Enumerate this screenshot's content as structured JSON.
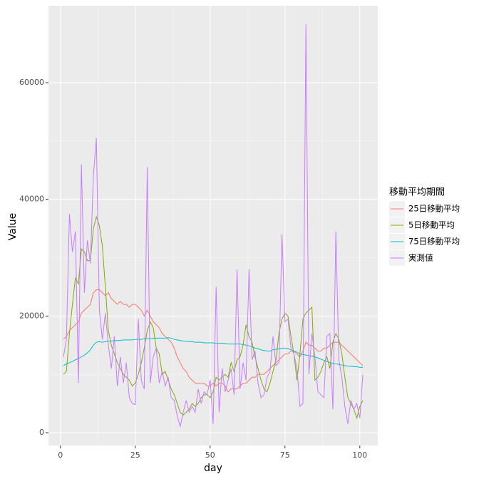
{
  "chart_data": {
    "type": "line",
    "x_label": "day",
    "y_label": "Value",
    "legend_title": "移動平均期間",
    "legend_position": "right",
    "grid": true,
    "xlim": [
      -4,
      106
    ],
    "ylim": [
      -2200,
      73200
    ],
    "xticks": [
      0,
      25,
      50,
      75,
      100
    ],
    "yticks": [
      0,
      20000,
      40000,
      60000
    ],
    "x": [
      1,
      2,
      3,
      4,
      5,
      6,
      7,
      8,
      9,
      10,
      11,
      12,
      13,
      14,
      15,
      16,
      17,
      18,
      19,
      20,
      21,
      22,
      23,
      24,
      25,
      26,
      27,
      28,
      29,
      30,
      31,
      32,
      33,
      34,
      35,
      36,
      37,
      38,
      39,
      40,
      41,
      42,
      43,
      44,
      45,
      46,
      47,
      48,
      49,
      50,
      51,
      52,
      53,
      54,
      55,
      56,
      57,
      58,
      59,
      60,
      61,
      62,
      63,
      64,
      65,
      66,
      67,
      68,
      69,
      70,
      71,
      72,
      73,
      74,
      75,
      76,
      77,
      78,
      79,
      80,
      81,
      82,
      83,
      84,
      85,
      86,
      87,
      88,
      89,
      90,
      91,
      92,
      93,
      94,
      95,
      96,
      97,
      98,
      99,
      100,
      101
    ],
    "series": [
      {
        "name": "25日移動平均",
        "color": "#F8766D",
        "values": [
          16000,
          16500,
          17500,
          18000,
          18500,
          19000,
          20500,
          21000,
          21500,
          22000,
          24000,
          24500,
          24500,
          24000,
          23500,
          24000,
          23000,
          22500,
          22000,
          22500,
          22000,
          22000,
          21500,
          22000,
          22000,
          21500,
          21000,
          20000,
          21000,
          20000,
          19000,
          18500,
          18000,
          17000,
          16500,
          16000,
          15500,
          14500,
          13000,
          12000,
          11000,
          10500,
          9500,
          9000,
          8500,
          8500,
          8500,
          8500,
          8000,
          8000,
          8500,
          8000,
          8500,
          8500,
          8000,
          7000,
          7500,
          7500,
          7500,
          8000,
          8500,
          8500,
          9000,
          9500,
          9500,
          10000,
          10000,
          10000,
          10500,
          11000,
          11500,
          12000,
          12500,
          13000,
          13500,
          13500,
          14000,
          14000,
          13500,
          13000,
          14000,
          15500,
          15000,
          15000,
          14500,
          14000,
          14000,
          14500,
          14500,
          15000,
          15500,
          15500,
          15500,
          15000,
          14500,
          14000,
          13500,
          13000,
          12500,
          12000,
          11500
        ]
      },
      {
        "name": "5日移動平均",
        "color": "#7CAE00",
        "values": [
          10000,
          10500,
          17000,
          22000,
          26500,
          25500,
          31500,
          31000,
          29500,
          29500,
          35000,
          37000,
          35500,
          32000,
          25000,
          17500,
          15000,
          13500,
          12000,
          11000,
          10000,
          9500,
          9000,
          8000,
          8500,
          10000,
          12000,
          14500,
          17500,
          19000,
          18000,
          14500,
          13500,
          10000,
          10500,
          9000,
          7500,
          6500,
          5000,
          3500,
          3000,
          3500,
          4000,
          5000,
          4500,
          5000,
          6000,
          6500,
          6500,
          6000,
          7000,
          9500,
          9000,
          9500,
          10000,
          9500,
          12000,
          10500,
          12500,
          13000,
          15000,
          18500,
          16500,
          15500,
          13000,
          11000,
          9000,
          7500,
          7000,
          8500,
          10500,
          12500,
          17000,
          19500,
          20500,
          20000,
          16500,
          13500,
          9000,
          13500,
          19500,
          20500,
          21000,
          21500,
          9000,
          9500,
          10500,
          12000,
          13000,
          11000,
          15500,
          17000,
          16000,
          13500,
          9500,
          6000,
          5000,
          4000,
          2500,
          4500,
          5500
        ]
      },
      {
        "name": "75日移動平均",
        "color": "#00BFC4",
        "values": [
          11500,
          11800,
          12000,
          12200,
          12500,
          12700,
          13000,
          13300,
          13700,
          14200,
          15000,
          15500,
          15600,
          15500,
          15600,
          15700,
          15700,
          15800,
          15800,
          15800,
          15900,
          15900,
          15900,
          15900,
          16000,
          16000,
          16000,
          16100,
          16100,
          16100,
          16200,
          16200,
          16200,
          16200,
          16200,
          16300,
          16200,
          16000,
          15900,
          15800,
          15700,
          15700,
          15600,
          15600,
          15500,
          15500,
          15500,
          15400,
          15400,
          15400,
          15400,
          15300,
          15300,
          15300,
          15300,
          15200,
          15200,
          15200,
          15200,
          15200,
          15100,
          15000,
          14900,
          14700,
          14500,
          14400,
          14200,
          14100,
          14000,
          14000,
          14200,
          14300,
          14400,
          14500,
          14500,
          14400,
          14200,
          14000,
          13800,
          13500,
          13400,
          13300,
          13200,
          13100,
          13000,
          12800,
          12600,
          12400,
          12200,
          12000,
          11900,
          11800,
          11700,
          11600,
          11500,
          11400,
          11400,
          11300,
          11300,
          11200,
          11200
        ]
      },
      {
        "name": "実測値",
        "color": "#C77CFF",
        "values": [
          13000,
          16000,
          37500,
          31000,
          34500,
          8500,
          46000,
          24000,
          33000,
          29000,
          44000,
          50500,
          21000,
          16000,
          20500,
          15000,
          11000,
          16500,
          8000,
          13000,
          8500,
          12000,
          6000,
          5000,
          4800,
          19500,
          9000,
          7500,
          45500,
          8500,
          13000,
          14500,
          8500,
          10500,
          8000,
          9500,
          6000,
          5500,
          3000,
          1000,
          3500,
          5500,
          3500,
          4500,
          3500,
          7500,
          5000,
          7000,
          6500,
          9000,
          1500,
          25000,
          3500,
          11000,
          7000,
          9000,
          11000,
          6500,
          28000,
          7500,
          12000,
          9000,
          28000,
          12500,
          14000,
          8500,
          6000,
          6500,
          9500,
          10500,
          16500,
          11500,
          12000,
          34000,
          19000,
          19500,
          14500,
          13500,
          11000,
          4500,
          5000,
          70000,
          10000,
          17000,
          13000,
          7000,
          6500,
          6000,
          16500,
          17000,
          4000,
          34500,
          12500,
          9500,
          4500,
          1500,
          5500,
          4000,
          5000,
          2500,
          10000
        ]
      }
    ]
  }
}
